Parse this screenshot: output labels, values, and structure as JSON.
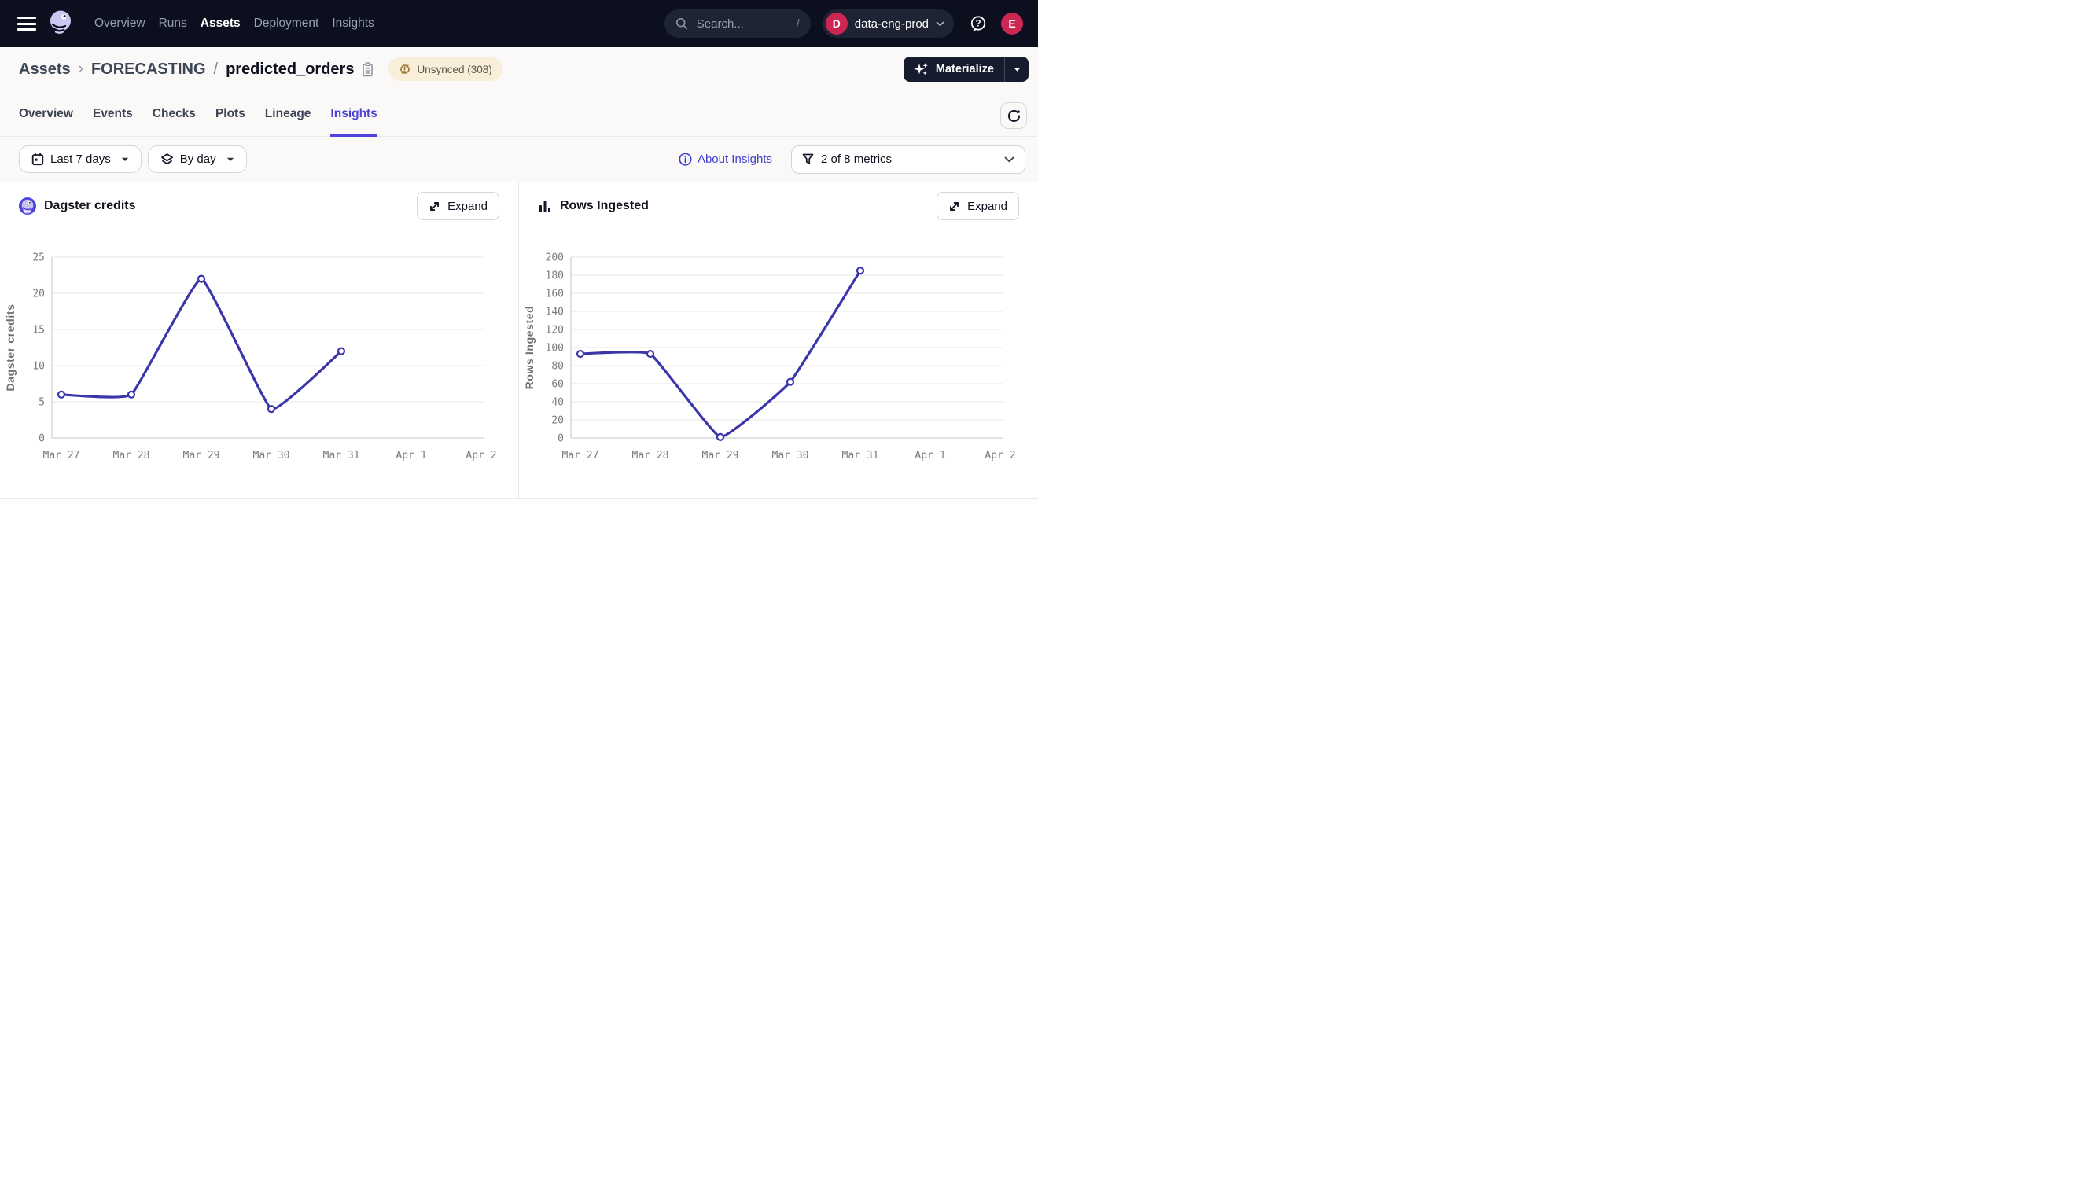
{
  "topbar": {
    "links": [
      {
        "label": "Overview",
        "active": false
      },
      {
        "label": "Runs",
        "active": false
      },
      {
        "label": "Assets",
        "active": true
      },
      {
        "label": "Deployment",
        "active": false
      },
      {
        "label": "Insights",
        "active": false
      }
    ],
    "search": {
      "placeholder": "Search...",
      "shortcut": "/"
    },
    "deployment": {
      "initial": "D",
      "name": "data-eng-prod"
    },
    "user_initial": "E"
  },
  "breadcrumb": {
    "root": "Assets",
    "chevron": "›",
    "group": "FORECASTING",
    "separator": "/",
    "asset": "predicted_orders"
  },
  "status_badge": {
    "label": "Unsynced (308)"
  },
  "actions": {
    "materialize_label": "Materialize"
  },
  "tabs": [
    {
      "label": "Overview",
      "active": false
    },
    {
      "label": "Events",
      "active": false
    },
    {
      "label": "Checks",
      "active": false
    },
    {
      "label": "Plots",
      "active": false
    },
    {
      "label": "Lineage",
      "active": false
    },
    {
      "label": "Insights",
      "active": true
    }
  ],
  "filters": {
    "date_range": "Last 7 days",
    "granularity": "By day",
    "about_link": "About Insights",
    "metrics_filter": "2 of 8 metrics"
  },
  "panels": [
    {
      "expand_label": "Expand"
    },
    {
      "expand_label": "Expand"
    }
  ],
  "chart_data": [
    {
      "type": "line",
      "title": "Dagster credits",
      "ylabel": "Dagster credits",
      "x": [
        "Mar 27",
        "Mar 28",
        "Mar 29",
        "Mar 30",
        "Mar 31",
        "Apr 1",
        "Apr 2"
      ],
      "series": [
        {
          "name": "Dagster credits",
          "values": [
            6,
            6,
            22,
            4,
            12
          ]
        }
      ],
      "ylim": [
        0,
        25
      ],
      "yticks": [
        0,
        5,
        10,
        15,
        20,
        25
      ],
      "grid": true,
      "legend": "none",
      "line_color": "#3b35ab"
    },
    {
      "type": "line",
      "title": "Rows Ingested",
      "ylabel": "Rows Ingested",
      "x": [
        "Mar 27",
        "Mar 28",
        "Mar 29",
        "Mar 30",
        "Mar 31",
        "Apr 1",
        "Apr 2"
      ],
      "series": [
        {
          "name": "Rows Ingested",
          "values": [
            93,
            93,
            1,
            62,
            185
          ]
        }
      ],
      "ylim": [
        0,
        200
      ],
      "yticks": [
        0,
        20,
        40,
        60,
        80,
        100,
        120,
        140,
        160,
        180,
        200
      ],
      "grid": true,
      "legend": "none",
      "line_color": "#3b35ab"
    }
  ],
  "colors": {
    "accent": "#4f43dd",
    "chart_line": "#3b35ab",
    "topbar_bg": "#0c101e",
    "badge_bg": "#f8eed9",
    "crimson": "#ce2653"
  }
}
